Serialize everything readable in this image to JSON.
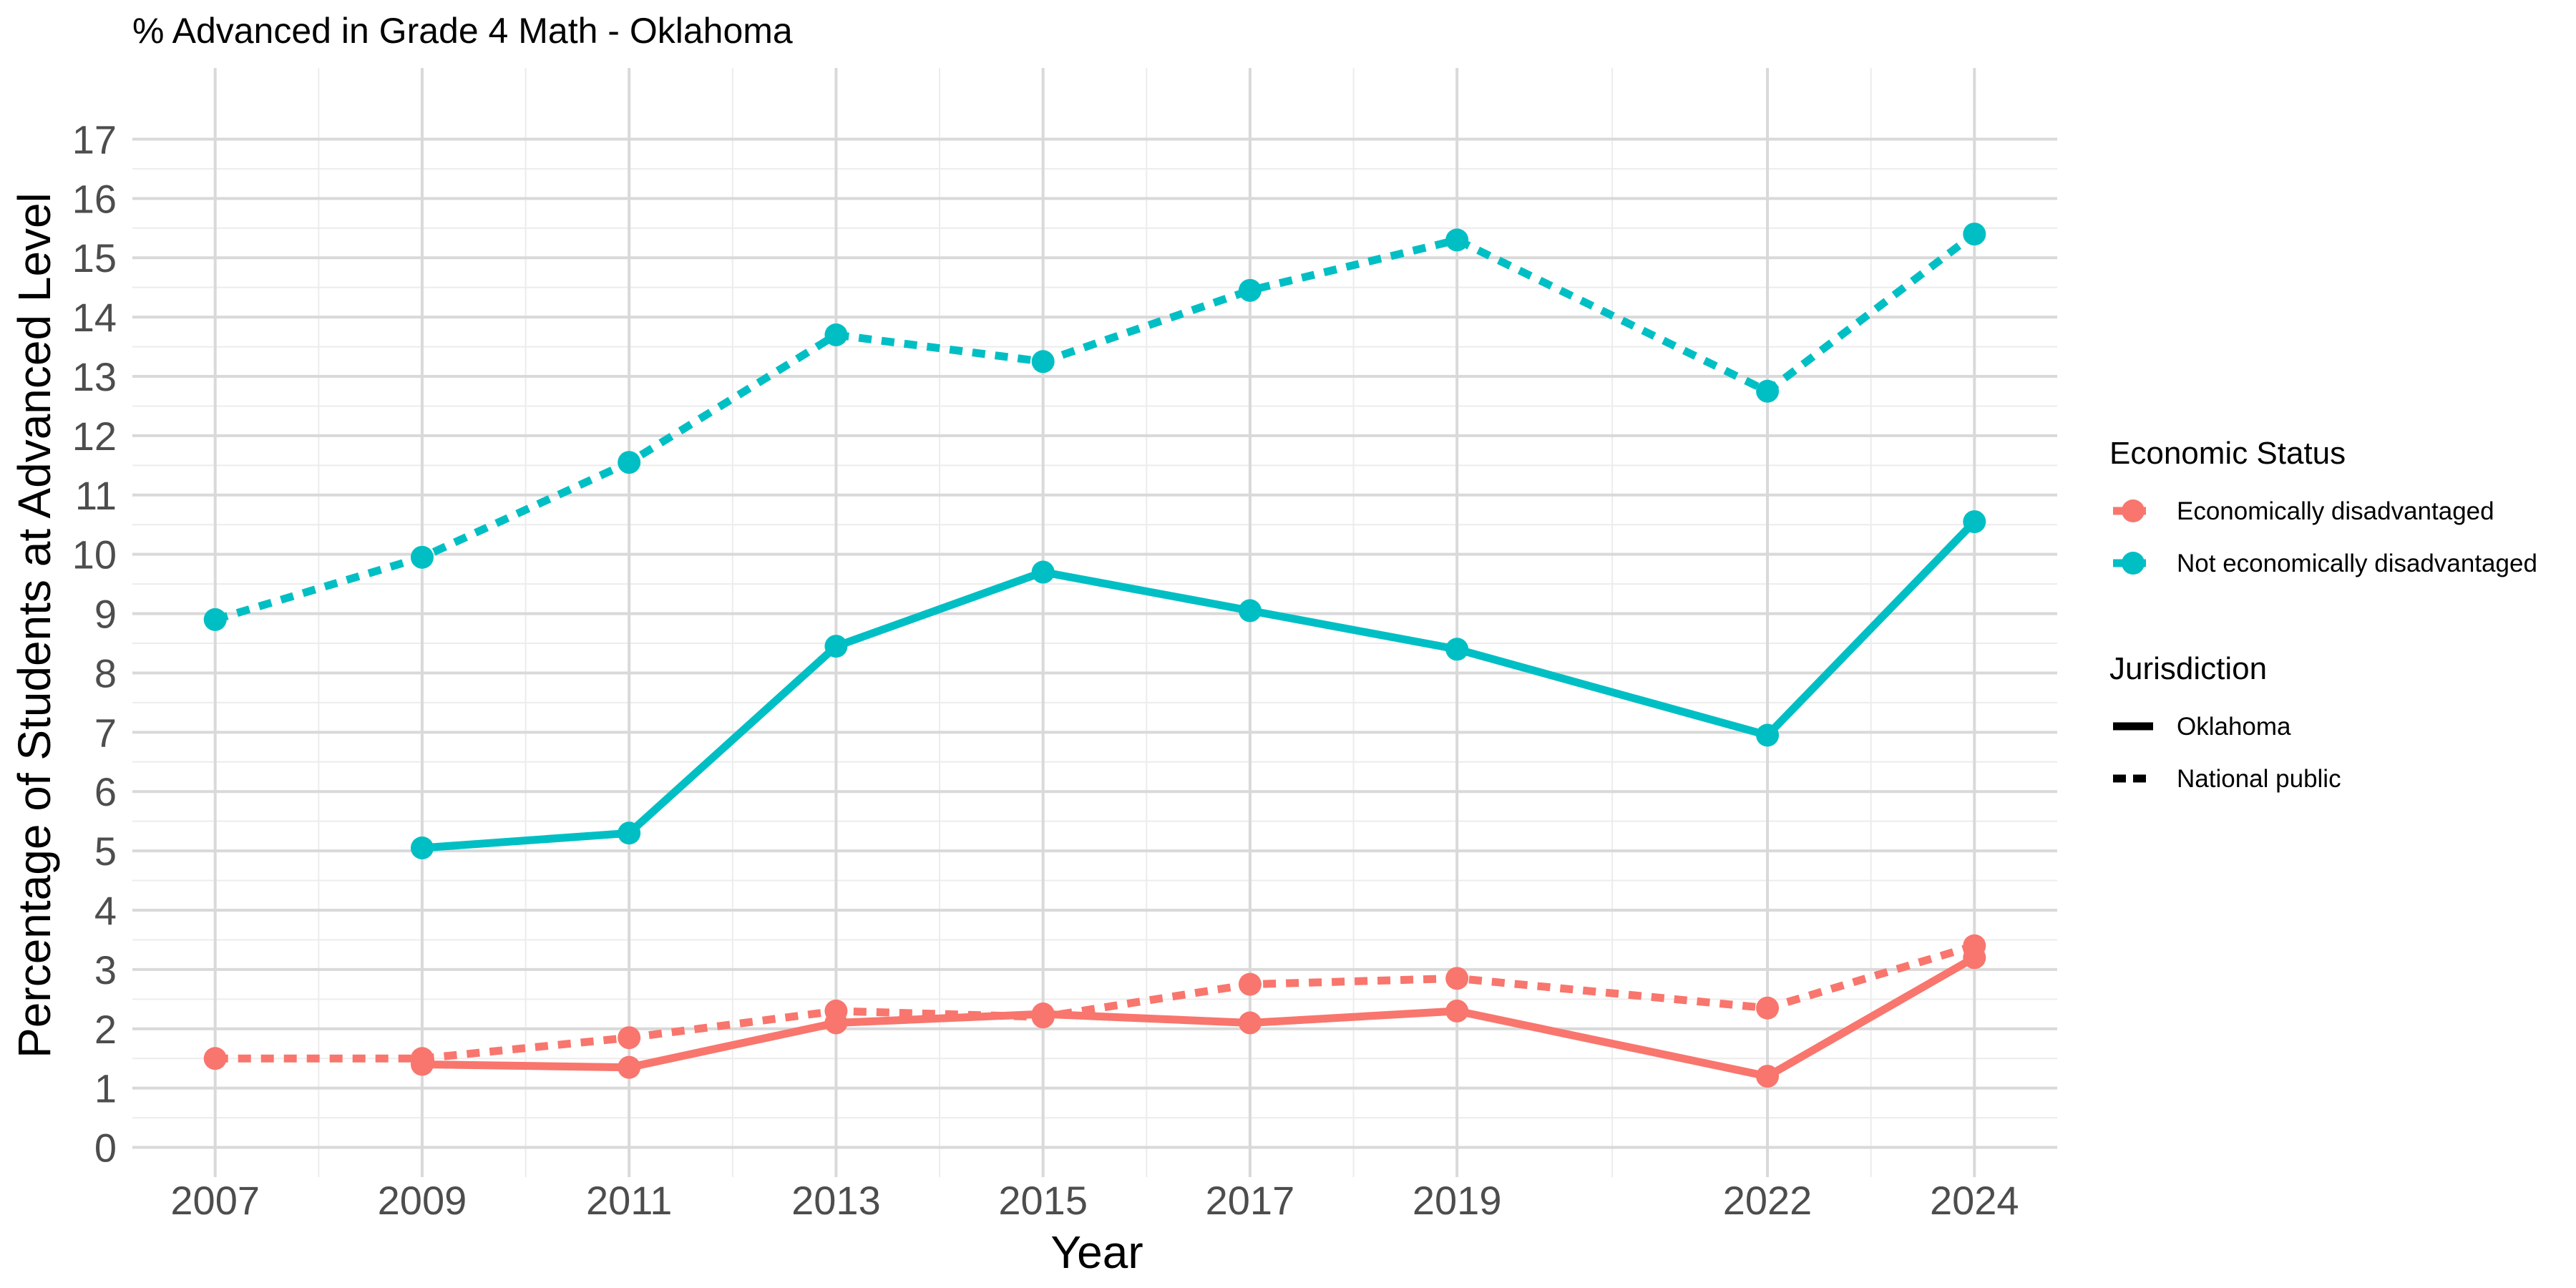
{
  "chart_data": {
    "type": "line",
    "title": "% Advanced in Grade 4 Math - Oklahoma",
    "xlabel": "Year",
    "ylabel": "Percentage of Students at Advanced Level",
    "x_ticks": [
      2007,
      2009,
      2011,
      2013,
      2015,
      2017,
      2019,
      2022,
      2024
    ],
    "y_ticks": [
      0,
      1,
      2,
      3,
      4,
      5,
      6,
      7,
      8,
      9,
      10,
      11,
      12,
      13,
      14,
      15,
      16,
      17
    ],
    "xlim": [
      2006.2,
      2024.8
    ],
    "ylim": [
      -0.5,
      18.2
    ],
    "grid": true,
    "legend_position": "right",
    "legend": {
      "color_title": "Economic Status",
      "color_items": [
        {
          "label": "Economically disadvantaged",
          "color": "#F8766D"
        },
        {
          "label": "Not economically disadvantaged",
          "color": "#00BFC4"
        }
      ],
      "linetype_title": "Jurisdiction",
      "linetype_items": [
        {
          "label": "Oklahoma",
          "dash": "solid"
        },
        {
          "label": "National public",
          "dash": "dashed"
        }
      ]
    },
    "series": [
      {
        "status": "Not economically disadvantaged",
        "jurisdiction": "National public",
        "color": "#00BFC4",
        "dash": "dashed",
        "x": [
          2007,
          2009,
          2011,
          2013,
          2015,
          2017,
          2019,
          2022,
          2024
        ],
        "values": [
          8.9,
          9.95,
          11.55,
          13.7,
          13.25,
          14.45,
          15.3,
          12.75,
          15.4
        ]
      },
      {
        "status": "Not economically disadvantaged",
        "jurisdiction": "Oklahoma",
        "color": "#00BFC4",
        "dash": "solid",
        "x": [
          2009,
          2011,
          2013,
          2015,
          2017,
          2019,
          2022,
          2024
        ],
        "values": [
          5.05,
          5.3,
          8.45,
          9.7,
          9.05,
          8.4,
          6.95,
          10.55
        ]
      },
      {
        "status": "Economically disadvantaged",
        "jurisdiction": "National public",
        "color": "#F8766D",
        "dash": "dashed",
        "x": [
          2007,
          2009,
          2011,
          2013,
          2015,
          2017,
          2019,
          2022,
          2024
        ],
        "values": [
          1.5,
          1.5,
          1.85,
          2.3,
          2.2,
          2.75,
          2.85,
          2.35,
          3.4
        ]
      },
      {
        "status": "Economically disadvantaged",
        "jurisdiction": "Oklahoma",
        "color": "#F8766D",
        "dash": "solid",
        "x": [
          2009,
          2011,
          2013,
          2015,
          2017,
          2019,
          2022,
          2024
        ],
        "values": [
          1.4,
          1.35,
          2.1,
          2.25,
          2.1,
          2.3,
          1.2,
          3.2
        ]
      }
    ]
  }
}
